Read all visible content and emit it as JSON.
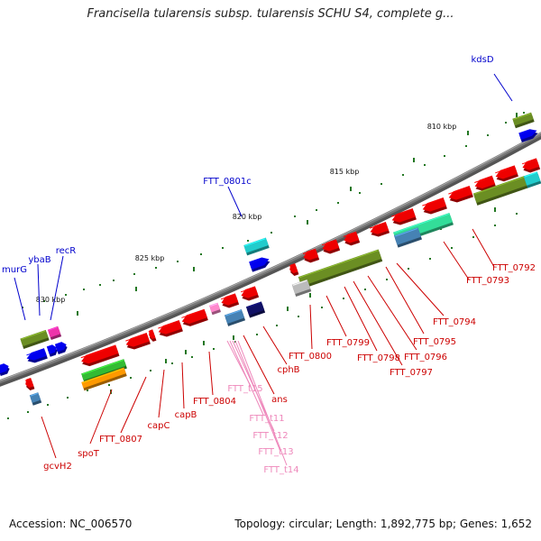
{
  "title": "Francisella tularensis subsp. tularensis SCHU S4, complete g...",
  "footer": {
    "accession": "Accession: NC_006570",
    "topology": "Topology: circular; Length: 1,892,775 bp; Genes: 1,652"
  },
  "scale_labels": [
    "810 kbp",
    "815 kbp",
    "820 kbp",
    "825 kbp",
    "830 kbp"
  ],
  "gene_labels_blue": [
    "kdsD",
    "FTT_0801c",
    "murG",
    "ybaB",
    "recR"
  ],
  "gene_labels_red": [
    "FTT_0792",
    "FTT_0793",
    "FTT_0794",
    "FTT_0795",
    "FTT_0796",
    "FTT_0797",
    "FTT_0798",
    "FTT_0799",
    "FTT_0800",
    "cphB",
    "ans",
    "FTT_0804",
    "capB",
    "capC",
    "FTT_0807",
    "spoT",
    "gcvH2"
  ],
  "gene_labels_pink": [
    "FTT_t15",
    "FTT_t11",
    "FTT_t12",
    "FTT_t13",
    "FTT_t14"
  ],
  "colors": {
    "backbone": "#777777",
    "gene_red": "#ee0000",
    "gene_blue": "#0000ee",
    "cds_olive": "#6b8e23",
    "cyan": "#22cccc",
    "green": "#33bb33",
    "orange": "#ff9900",
    "steelblue": "#4682b4",
    "mint": "#33dd99",
    "magenta": "#ee33aa",
    "pink": "#ff88cc",
    "navy": "#111166",
    "grey": "#bbbbbb",
    "label_blue": "#0000cc",
    "label_red": "#cc0000",
    "label_pink": "#ee88bb",
    "tick_green": "#227722"
  }
}
